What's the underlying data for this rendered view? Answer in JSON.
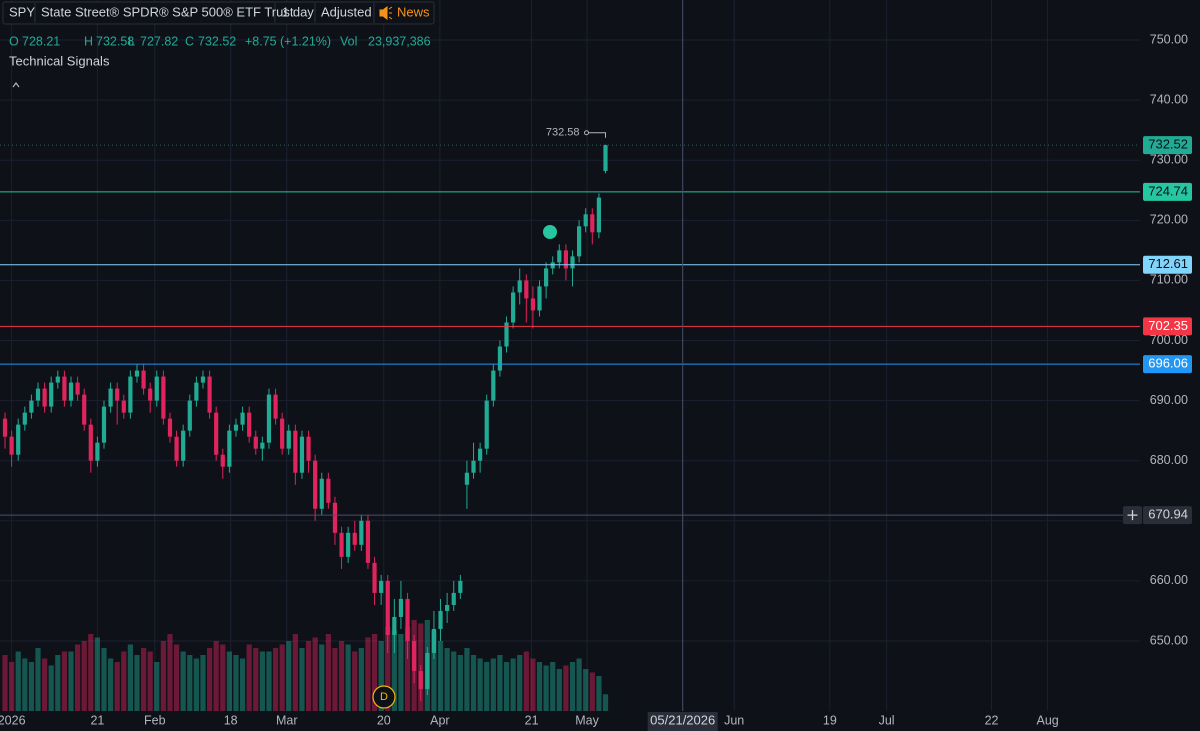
{
  "header": {
    "symbol": "SPY",
    "name": "State Street® SPDR® S&P 500® ETF Trust",
    "interval": "1 day",
    "adjust": "Adjusted",
    "news": "News",
    "signals": "Technical Signals"
  },
  "legend": {
    "o": "O",
    "h": "H",
    "l": "L",
    "c": "C",
    "change": "+8.75",
    "change_pct": "(+1.21%)",
    "vol": "Vol",
    "volume": "23,937,386"
  },
  "chart_data": {
    "type": "candlestick",
    "up_color": "#22ab94",
    "down_color": "#e0245e",
    "open": [
      687,
      684,
      681,
      686,
      688,
      690,
      692,
      689,
      693,
      694,
      690,
      693,
      691,
      686,
      680,
      683,
      689,
      692,
      690,
      688,
      694,
      695,
      692,
      690,
      694,
      687,
      684,
      680,
      685,
      690,
      693,
      694,
      688,
      681,
      679,
      685,
      686,
      688,
      684,
      682,
      683,
      691,
      687,
      682,
      685,
      678,
      684,
      680,
      672,
      677,
      673,
      668,
      664,
      668,
      666,
      670,
      663,
      658,
      660,
      651,
      654,
      657,
      650,
      645,
      642,
      648,
      652,
      655,
      656,
      658,
      676,
      678,
      680,
      682,
      690,
      695,
      699,
      703,
      708,
      710,
      707,
      705,
      709,
      712,
      713,
      715,
      712,
      714,
      719,
      721,
      718,
      728.21
    ],
    "high": [
      688,
      685,
      687,
      689,
      691,
      693,
      693,
      694,
      695,
      695,
      694,
      694,
      692,
      687,
      684,
      690,
      693,
      693,
      691,
      695,
      696,
      696,
      693,
      695,
      695,
      688,
      685,
      686,
      691,
      694,
      695,
      695,
      689,
      682,
      686,
      687,
      689,
      689,
      685,
      684,
      692,
      692,
      688,
      686,
      686,
      685,
      685,
      681,
      678,
      678,
      674,
      669,
      669,
      670,
      671,
      671,
      664,
      661,
      661,
      657,
      660,
      658,
      651,
      646,
      649,
      655,
      657,
      658,
      660,
      661,
      680,
      683,
      683,
      691,
      696,
      700,
      704,
      709,
      712,
      711,
      709,
      710,
      713,
      714,
      716,
      716,
      715,
      720,
      722,
      722,
      724.5,
      732.58
    ],
    "low": [
      682,
      679,
      680,
      685,
      687,
      689,
      688,
      688,
      692,
      689,
      689,
      690,
      685,
      678,
      679,
      682,
      688,
      686,
      687,
      687,
      693,
      691,
      688,
      689,
      686,
      683,
      679,
      679,
      684,
      689,
      692,
      687,
      680,
      677,
      678,
      684,
      685,
      683,
      681,
      680,
      682,
      686,
      681,
      681,
      676,
      677,
      678,
      670,
      671,
      672,
      666,
      662,
      663,
      665,
      665,
      662,
      656,
      656,
      648,
      648,
      652,
      647,
      643,
      640,
      641,
      647,
      650,
      653,
      655,
      657,
      672,
      677,
      678,
      681,
      689,
      694,
      698,
      702,
      706,
      703,
      702,
      704,
      707,
      711,
      712,
      710,
      709,
      713,
      718,
      716,
      717,
      727.82
    ],
    "close": [
      684,
      681,
      686,
      688,
      690,
      692,
      689,
      693,
      694,
      690,
      693,
      691,
      686,
      680,
      683,
      689,
      692,
      690,
      688,
      694,
      695,
      692,
      690,
      694,
      687,
      684,
      680,
      685,
      690,
      693,
      694,
      688,
      681,
      679,
      685,
      686,
      688,
      684,
      682,
      683,
      691,
      687,
      682,
      685,
      678,
      684,
      680,
      672,
      677,
      673,
      668,
      664,
      668,
      666,
      670,
      663,
      658,
      660,
      651,
      654,
      657,
      650,
      645,
      642,
      648,
      652,
      655,
      656,
      658,
      660,
      678,
      680,
      682,
      690,
      695,
      699,
      703,
      708,
      710,
      707,
      705,
      709,
      712,
      713,
      715,
      712,
      714,
      719,
      721,
      718,
      723.77,
      732.52
    ],
    "volume": [
      80000000,
      70000000,
      85000000,
      75000000,
      70000000,
      90000000,
      75000000,
      65000000,
      80000000,
      85000000,
      85000000,
      95000000,
      100000000,
      110000000,
      105000000,
      90000000,
      75000000,
      70000000,
      85000000,
      95000000,
      80000000,
      90000000,
      85000000,
      70000000,
      100000000,
      110000000,
      95000000,
      85000000,
      80000000,
      75000000,
      80000000,
      90000000,
      100000000,
      95000000,
      85000000,
      80000000,
      75000000,
      95000000,
      90000000,
      85000000,
      85000000,
      90000000,
      95000000,
      100000000,
      110000000,
      90000000,
      100000000,
      105000000,
      95000000,
      110000000,
      90000000,
      100000000,
      95000000,
      85000000,
      90000000,
      105000000,
      110000000,
      100000000,
      120000000,
      115000000,
      110000000,
      120000000,
      130000000,
      125000000,
      130000000,
      115000000,
      100000000,
      90000000,
      85000000,
      80000000,
      90000000,
      80000000,
      75000000,
      70000000,
      75000000,
      80000000,
      70000000,
      75000000,
      80000000,
      85000000,
      75000000,
      70000000,
      65000000,
      70000000,
      60000000,
      65000000,
      70000000,
      75000000,
      60000000,
      55000000,
      50000000,
      23937386
    ],
    "xlim": [
      -0.76,
      172
    ],
    "xticks": [
      {
        "value": 1,
        "label": "2026"
      },
      {
        "value": 14,
        "label": "21"
      },
      {
        "value": 22.7,
        "label": "Feb"
      },
      {
        "value": 34.2,
        "label": "18"
      },
      {
        "value": 42.7,
        "label": "Mar"
      },
      {
        "value": 57.4,
        "label": "20"
      },
      {
        "value": 65.9,
        "label": "Apr"
      },
      {
        "value": 79.8,
        "label": "21"
      },
      {
        "value": 88.2,
        "label": "May"
      },
      {
        "value": 110.5,
        "label": "Jun"
      },
      {
        "value": 125,
        "label": "19"
      },
      {
        "value": 133.6,
        "label": "Jul"
      },
      {
        "value": 149.5,
        "label": "22"
      },
      {
        "value": 158,
        "label": "Aug"
      }
    ],
    "ylim": [
      638.35,
      756.66
    ],
    "yticks": [
      {
        "value": 650,
        "label": "650.00"
      },
      {
        "value": 660,
        "label": "660.00"
      },
      {
        "value": 670,
        "label": "670.00"
      },
      {
        "value": 680,
        "label": "680.00"
      },
      {
        "value": 690,
        "label": "690.00"
      },
      {
        "value": 700,
        "label": "700.00"
      },
      {
        "value": 710,
        "label": "710.00"
      },
      {
        "value": 720,
        "label": "720.00"
      },
      {
        "value": 730,
        "label": "730.00"
      },
      {
        "value": 740,
        "label": "740.00"
      },
      {
        "value": 750,
        "label": "750.00"
      }
    ],
    "grid": true,
    "levels": [
      {
        "value": 724.74,
        "color": "#26c6a0",
        "text_color": "#0e1118"
      },
      {
        "value": 712.61,
        "color": "#81d4fa",
        "text_color": "#0e1118"
      },
      {
        "value": 702.35,
        "color": "#f23645",
        "text_color": "#ffffff"
      },
      {
        "value": 696.06,
        "color": "#2196f3",
        "text_color": "#ffffff"
      }
    ],
    "crosshair": {
      "x": 102.7,
      "label": "05/21/2026",
      "price": 670.94
    },
    "events": [
      {
        "label": "D"
      }
    ]
  }
}
